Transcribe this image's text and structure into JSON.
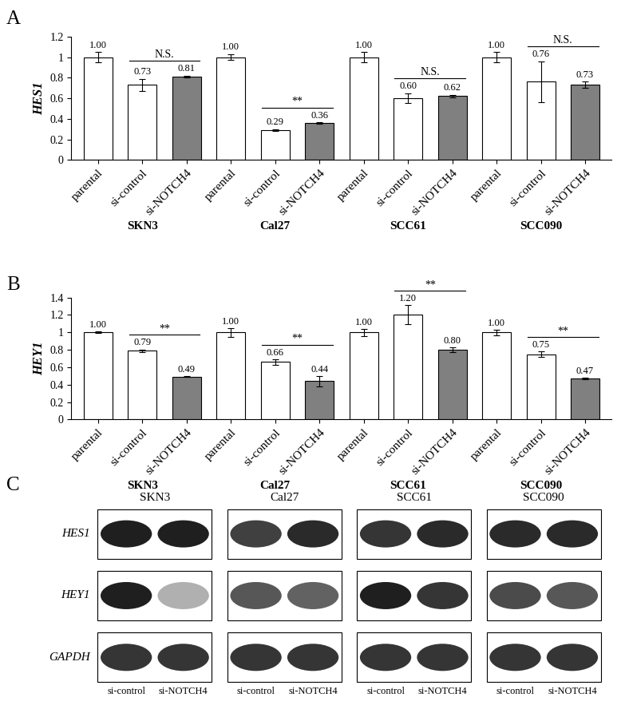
{
  "chart_data": [
    {
      "type": "bar",
      "panel": "A",
      "y_label": "HES1",
      "groups": [
        "SKN3",
        "Cal27",
        "SCC61",
        "SCC090"
      ],
      "categories": [
        "parental",
        "si-control",
        "si-NOTCH4",
        "parental",
        "si-control",
        "si-NOTCH4",
        "parental",
        "si-control",
        "si-NOTCH4",
        "parental",
        "si-control",
        "si-NOTCH4"
      ],
      "values": [
        1.0,
        0.73,
        0.81,
        1.0,
        0.29,
        0.36,
        1.0,
        0.6,
        0.62,
        1.0,
        0.76,
        0.73
      ],
      "value_labels": [
        "1.00",
        "0.73",
        "0.81",
        "1.00",
        "0.29",
        "0.36",
        "1.00",
        "0.60",
        "0.62",
        "1.00",
        "0.76",
        "0.73"
      ],
      "errors": [
        0.05,
        0.06,
        0.01,
        0.03,
        0.01,
        0.005,
        0.05,
        0.05,
        0.015,
        0.05,
        0.2,
        0.03
      ],
      "colors": [
        "#ffffff",
        "#ffffff",
        "#808080",
        "#ffffff",
        "#ffffff",
        "#808080",
        "#ffffff",
        "#ffffff",
        "#808080",
        "#ffffff",
        "#ffffff",
        "#808080"
      ],
      "ylim": [
        0,
        1.2
      ],
      "yticks": [
        0,
        0.2,
        0.4,
        0.6,
        0.8,
        1,
        1.2
      ],
      "data_labels": true,
      "significance": [
        {
          "group": "SKN3",
          "between": [
            "si-control",
            "si-NOTCH4"
          ],
          "label": "N.S."
        },
        {
          "group": "Cal27",
          "between": [
            "si-control",
            "si-NOTCH4"
          ],
          "label": "**"
        },
        {
          "group": "SCC61",
          "between": [
            "si-control",
            "si-NOTCH4"
          ],
          "label": "N.S."
        },
        {
          "group": "SCC090",
          "between": [
            "si-control",
            "si-NOTCH4"
          ],
          "label": "N.S."
        }
      ]
    },
    {
      "type": "bar",
      "panel": "B",
      "y_label": "HEY1",
      "groups": [
        "SKN3",
        "Cal27",
        "SCC61",
        "SCC090"
      ],
      "categories": [
        "parental",
        "si-control",
        "si-NOTCH4",
        "parental",
        "si-control",
        "si-NOTCH4",
        "parental",
        "si-control",
        "si-NOTCH4",
        "parental",
        "si-control",
        "si-NOTCH4"
      ],
      "values": [
        1.0,
        0.79,
        0.49,
        1.0,
        0.66,
        0.44,
        1.0,
        1.2,
        0.8,
        1.0,
        0.75,
        0.47
      ],
      "value_labels": [
        "1.00",
        "0.79",
        "0.49",
        "1.00",
        "0.66",
        "0.44",
        "1.00",
        "1.20",
        "0.80",
        "1.00",
        "0.75",
        "0.47"
      ],
      "errors": [
        0.01,
        0.015,
        0.005,
        0.05,
        0.03,
        0.06,
        0.04,
        0.11,
        0.03,
        0.03,
        0.03,
        0.01
      ],
      "colors": [
        "#ffffff",
        "#ffffff",
        "#808080",
        "#ffffff",
        "#ffffff",
        "#808080",
        "#ffffff",
        "#ffffff",
        "#808080",
        "#ffffff",
        "#ffffff",
        "#808080"
      ],
      "ylim": [
        0,
        1.4
      ],
      "yticks": [
        0,
        0.2,
        0.4,
        0.6,
        0.8,
        1,
        1.2,
        1.4
      ],
      "data_labels": true,
      "significance": [
        {
          "group": "SKN3",
          "between": [
            "si-control",
            "si-NOTCH4"
          ],
          "label": "**"
        },
        {
          "group": "Cal27",
          "between": [
            "si-control",
            "si-NOTCH4"
          ],
          "label": "**"
        },
        {
          "group": "SCC61",
          "between": [
            "si-control",
            "si-NOTCH4"
          ],
          "label": "**"
        },
        {
          "group": "SCC090",
          "between": [
            "si-control",
            "si-NOTCH4"
          ],
          "label": "**"
        }
      ]
    }
  ],
  "blot": {
    "panel": "C",
    "columns": [
      "SKN3",
      "Cal27",
      "SCC61",
      "SCC090"
    ],
    "lanes": [
      "si-control",
      "si-NOTCH4"
    ],
    "rows": [
      {
        "name": "HES1",
        "intensity": [
          [
            1.0,
            1.0
          ],
          [
            0.85,
            0.95
          ],
          [
            0.9,
            0.95
          ],
          [
            0.95,
            0.95
          ]
        ]
      },
      {
        "name": "HEY1",
        "intensity": [
          [
            1.0,
            0.35
          ],
          [
            0.75,
            0.7
          ],
          [
            1.0,
            0.9
          ],
          [
            0.8,
            0.75
          ]
        ]
      },
      {
        "name": "GAPDH",
        "intensity": [
          [
            0.9,
            0.9
          ],
          [
            0.9,
            0.9
          ],
          [
            0.9,
            0.9
          ],
          [
            0.9,
            0.9
          ]
        ]
      }
    ]
  }
}
